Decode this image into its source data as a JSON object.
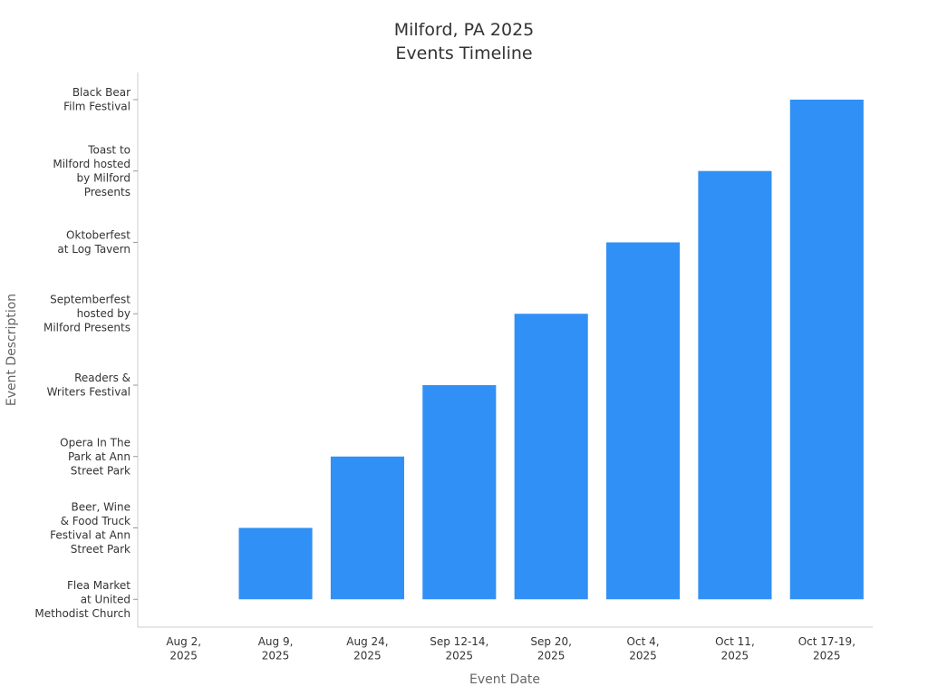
{
  "chart_data": {
    "type": "bar",
    "title": "Milford, PA 2025\nEvents Timeline",
    "x_label": "Event Date",
    "y_label": "Event Description",
    "categories": [
      "Aug 2,\n2025",
      "Aug 9,\n2025",
      "Aug 24,\n2025",
      "Sep 12-14,\n2025",
      "Sep 20,\n2025",
      "Oct 4,\n2025",
      "Oct 11,\n2025",
      "Oct 17-19,\n2025"
    ],
    "values": [
      0,
      1,
      2,
      3,
      4,
      5,
      6,
      7
    ],
    "color": "#3090f5",
    "ylim": [
      -0.39,
      7.38
    ],
    "yticks": [
      {
        "value": 0,
        "label": "Flea Market\nat United\nMethodist Church"
      },
      {
        "value": 1,
        "label": "Beer, Wine\n& Food Truck\nFestival at Ann\nStreet Park"
      },
      {
        "value": 2,
        "label": "Opera In The\nPark at Ann\nStreet Park"
      },
      {
        "value": 3,
        "label": "Readers &\nWriters Festival"
      },
      {
        "value": 4,
        "label": "Septemberfest\nhosted by\nMilford Presents"
      },
      {
        "value": 5,
        "label": "Oktoberfest\nat Log Tavern"
      },
      {
        "value": 6,
        "label": "Toast to\nMilford hosted\nby Milford\nPresents"
      },
      {
        "value": 7,
        "label": "Black Bear\nFilm Festival"
      }
    ],
    "grid": false
  }
}
